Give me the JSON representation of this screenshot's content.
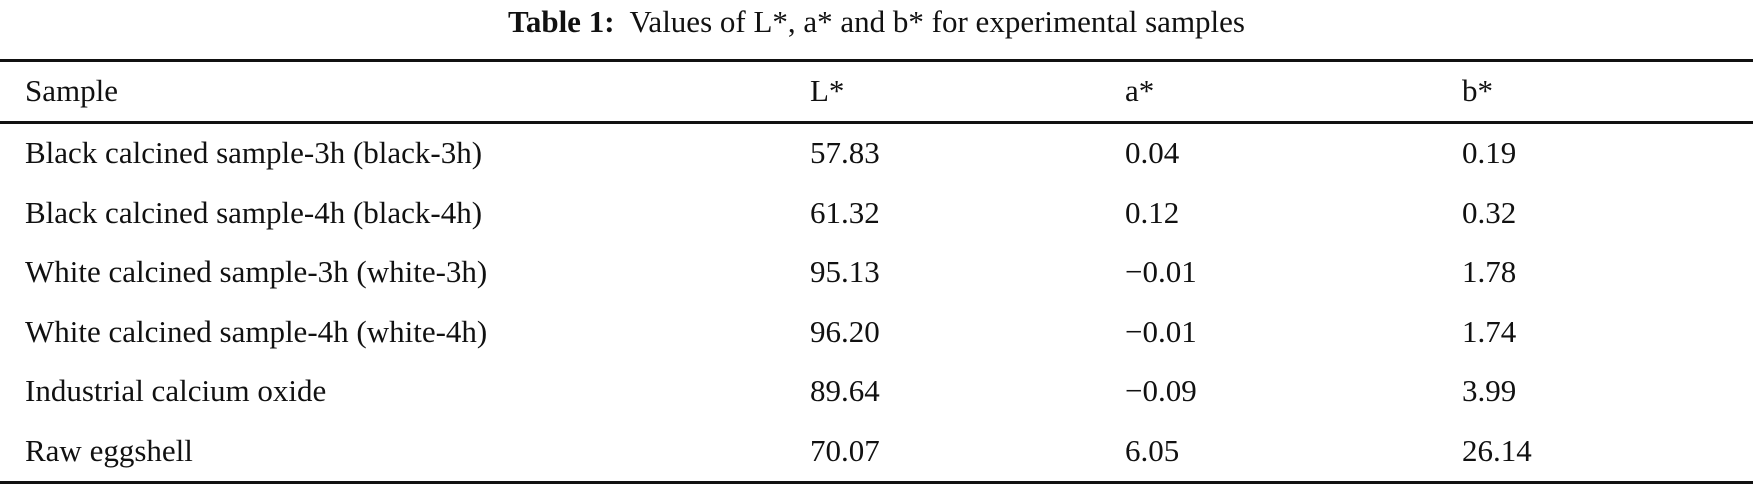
{
  "caption": {
    "label": "Table 1:",
    "text": "Values of L*, a* and b* for experimental samples"
  },
  "table": {
    "headers": [
      "Sample",
      "L*",
      "a*",
      "b*"
    ],
    "rows": [
      [
        "Black calcined sample-3h (black-3h)",
        "57.83",
        "0.04",
        "0.19"
      ],
      [
        "Black calcined sample-4h (black-4h)",
        "61.32",
        "0.12",
        "0.32"
      ],
      [
        "White calcined sample-3h (white-3h)",
        "95.13",
        "−0.01",
        "1.78"
      ],
      [
        "White calcined sample-4h (white-4h)",
        "96.20",
        "−0.01",
        "1.74"
      ],
      [
        "Industrial calcium oxide",
        "89.64",
        "−0.09",
        "3.99"
      ],
      [
        "Raw eggshell",
        "70.07",
        "6.05",
        "26.14"
      ]
    ]
  }
}
